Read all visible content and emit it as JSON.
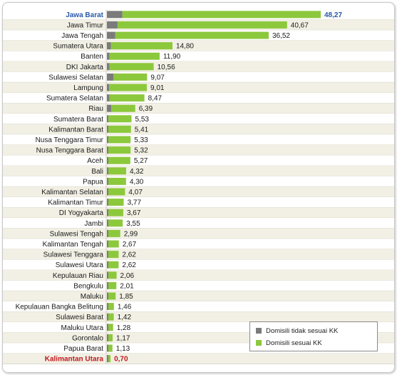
{
  "chart_data": {
    "type": "bar",
    "orientation": "horizontal",
    "stacked": true,
    "colors": {
      "row_light": "#ffffff",
      "row_dark": "#f2f0e4",
      "border": "#c9c7b8",
      "grey": "#7b7b7b",
      "green": "#8cc83c"
    },
    "categories": [
      "Jawa Barat",
      "Jawa Timur",
      "Jawa Tengah",
      "Sumatera Utara",
      "Banten",
      "DKI Jakarta",
      "Sulawesi Selatan",
      "Lampung",
      "Sumatera Selatan",
      "Riau",
      "Sumatera Barat",
      "Kalimantan Barat",
      "Nusa Tenggara Timur",
      "Nusa Tenggara Barat",
      "Aceh",
      "Bali",
      "Papua",
      "Kalimantan Selatan",
      "Kalimantan Timur",
      "DI Yogyakarta",
      "Jambi",
      "Sulawesi Tengah",
      "Kalimantan Tengah",
      "Sulawesi Tenggara",
      "Sulawesi Utara",
      "Kepulauan Riau",
      "Bengkulu",
      "Maluku",
      "Kepulauan Bangka Belitung",
      "Sulawesi Barat",
      "Maluku Utara",
      "Gorontalo",
      "Papua Barat",
      "Kalimantan Utara"
    ],
    "totals": [
      "48,27",
      "40,67",
      "36,52",
      "14,80",
      "11,90",
      "10,56",
      "9,07",
      "9,01",
      "8,47",
      "6,39",
      "5,53",
      "5,41",
      "5,33",
      "5,32",
      "5,27",
      "4,32",
      "4,30",
      "4,07",
      "3,77",
      "3,67",
      "3,55",
      "2,99",
      "2,67",
      "2,62",
      "2,62",
      "2,06",
      "2,01",
      "1,85",
      "1,46",
      "1,42",
      "1,28",
      "1,17",
      "1,13",
      "0,70"
    ],
    "series": [
      {
        "name": "Domisili tidak sesuai KK",
        "color": "#7b7b7b",
        "values": [
          3.5,
          2.4,
          1.9,
          0.9,
          0.6,
          0.6,
          1.5,
          0.5,
          0.6,
          1.0,
          0.3,
          0.3,
          0.3,
          0.3,
          0.3,
          0.3,
          0.3,
          0.3,
          0.3,
          0.3,
          0.3,
          0.3,
          0.3,
          0.3,
          0.3,
          0.2,
          0.2,
          0.2,
          0.2,
          0.2,
          0.2,
          0.2,
          0.2,
          0.2
        ]
      },
      {
        "name": "Domisili sesuai KK",
        "color": "#8cc83c",
        "values": [
          44.77,
          38.27,
          34.62,
          13.9,
          11.3,
          9.96,
          7.57,
          8.51,
          7.87,
          5.39,
          5.23,
          5.11,
          5.03,
          5.02,
          4.97,
          4.02,
          4.0,
          3.77,
          3.47,
          3.37,
          3.25,
          2.69,
          2.37,
          2.32,
          2.32,
          1.86,
          1.81,
          1.65,
          1.26,
          1.22,
          1.08,
          0.97,
          0.93,
          0.5
        ]
      }
    ],
    "highlight_first": "#2a5aa8",
    "highlight_last": "#c0181e",
    "xlim": [
      0,
      50
    ],
    "legend_position": "bottom-right"
  }
}
